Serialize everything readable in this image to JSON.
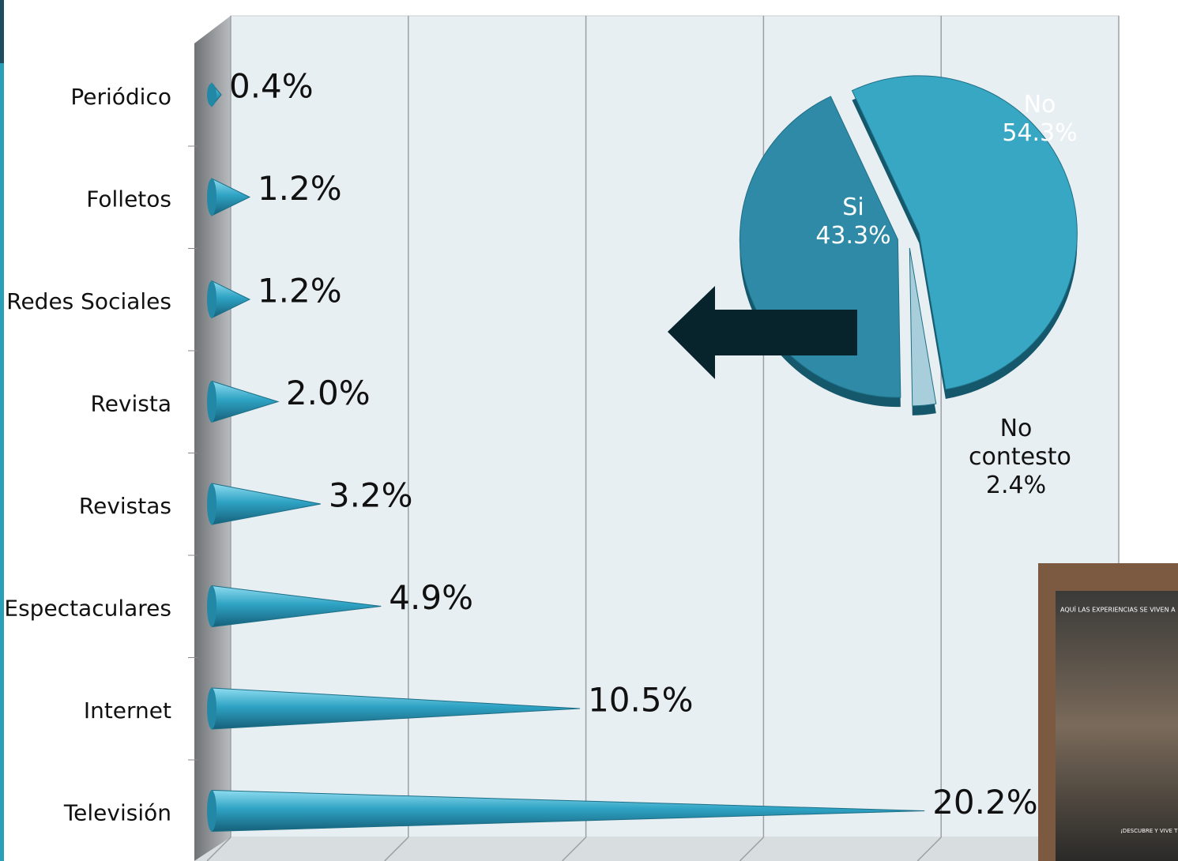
{
  "chart_data": [
    {
      "type": "cone-bar",
      "categories": [
        "Periódico",
        "Folletos",
        "Redes Sociales",
        "Revista",
        "Revistas",
        "Espectaculares",
        "Internet",
        "Televisión"
      ],
      "values": [
        0.4,
        1.2,
        1.2,
        2.0,
        3.2,
        4.9,
        10.5,
        20.2
      ],
      "value_labels": [
        "0.4%",
        "1.2%",
        "1.2%",
        "2.0%",
        "3.2%",
        "4.9%",
        "10.5%",
        "20.2%"
      ],
      "color": "#2fa3c4",
      "xlim": [
        0,
        25
      ],
      "xticks": [
        0,
        5,
        10,
        15,
        20,
        25
      ],
      "grid": true
    },
    {
      "type": "pie",
      "categories": [
        "Si",
        "No",
        "No contesto"
      ],
      "values": [
        43.3,
        54.3,
        2.4
      ],
      "value_labels": [
        "43.3%",
        "54.3%",
        "2.4%"
      ],
      "colors": [
        "#2e8aa6",
        "#38a7c4",
        "#a8cedb"
      ]
    }
  ],
  "image_texts": [
    "AQUÍ LAS EXPERIENCIAS SE VIVEN A",
    "¡DESCUBRE Y VIVE TO"
  ]
}
